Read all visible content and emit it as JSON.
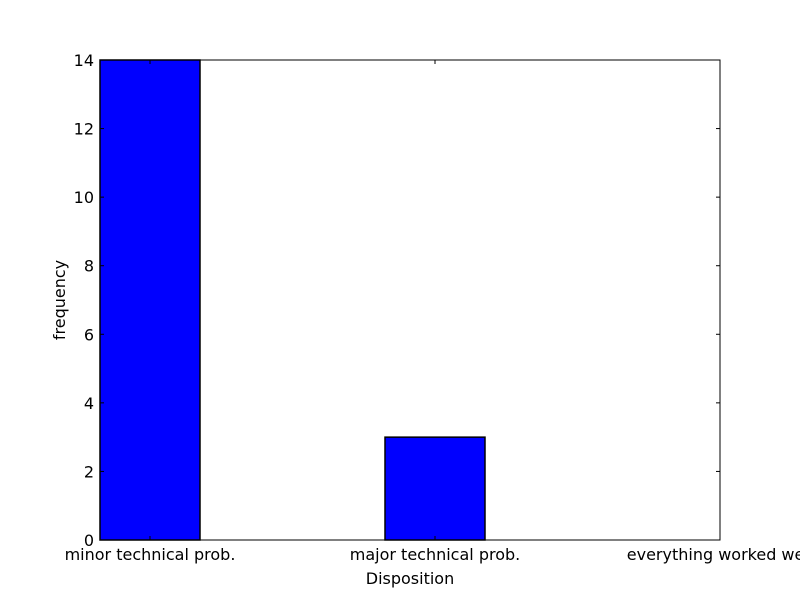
{
  "chart_data": {
    "type": "bar",
    "categories": [
      "minor technical prob.",
      "major technical prob.",
      "everything worked well"
    ],
    "values": [
      14,
      3,
      0
    ],
    "title": "",
    "xlabel": "Disposition",
    "ylabel": "frequency",
    "ylim": [
      0,
      14
    ],
    "yticks": [
      0,
      2,
      4,
      6,
      8,
      10,
      12,
      14
    ],
    "grid": false,
    "legend": "none",
    "bar_color": "#0000ff",
    "edge_color": "#000000"
  }
}
